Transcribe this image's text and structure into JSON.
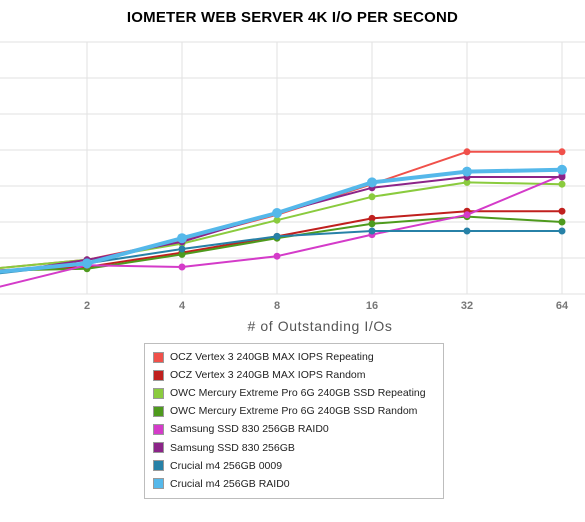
{
  "chart_data": {
    "type": "line",
    "title": "IOMETER WEB SERVER 4K I/O PER SECOND",
    "xlabel": "# of Outstanding I/Os",
    "ylabel": "",
    "x": [
      "1",
      "2",
      "4",
      "8",
      "16",
      "32",
      "64"
    ],
    "x_tick_labels": [
      "2",
      "4",
      "8",
      "16",
      "32",
      "64"
    ],
    "ylim": [
      0,
      7
    ],
    "grid": true,
    "legend_position": "bottom",
    "series": [
      {
        "name": "OCZ Vertex 3 240GB MAX IOPS Repeating",
        "color": "#f0504a",
        "values": [
          0.7,
          0.95,
          1.5,
          2.2,
          3.05,
          3.95,
          3.95
        ]
      },
      {
        "name": "OCZ Vertex 3 240GB MAX IOPS Random",
        "color": "#c0201e",
        "values": [
          0.65,
          0.75,
          1.15,
          1.6,
          2.1,
          2.3,
          2.3
        ]
      },
      {
        "name": "OWC Mercury Extreme Pro 6G 240GB SSD Repeating",
        "color": "#8acb3e",
        "values": [
          0.7,
          0.95,
          1.4,
          2.05,
          2.7,
          3.1,
          3.05
        ]
      },
      {
        "name": "OWC Mercury Extreme Pro 6G 240GB SSD Random",
        "color": "#4e9a1d",
        "values": [
          0.65,
          0.7,
          1.1,
          1.55,
          1.95,
          2.15,
          2.0
        ]
      },
      {
        "name": "Samsung SSD 830 256GB RAID0",
        "color": "#d43bc9",
        "values": [
          0.15,
          0.8,
          0.75,
          1.05,
          1.65,
          2.2,
          3.3
        ]
      },
      {
        "name": "Samsung SSD 830 256GB",
        "color": "#8b2488",
        "values": [
          0.55,
          0.95,
          1.45,
          2.25,
          2.95,
          3.25,
          3.25
        ]
      },
      {
        "name": "Crucial m4 256GB 0009",
        "color": "#2781a7",
        "values": [
          0.55,
          0.85,
          1.25,
          1.6,
          1.75,
          1.75,
          1.75
        ]
      },
      {
        "name": "Crucial m4 256GB RAID0",
        "color": "#55b8ea",
        "values": [
          0.6,
          0.85,
          1.55,
          2.25,
          3.1,
          3.4,
          3.45
        ]
      }
    ]
  }
}
